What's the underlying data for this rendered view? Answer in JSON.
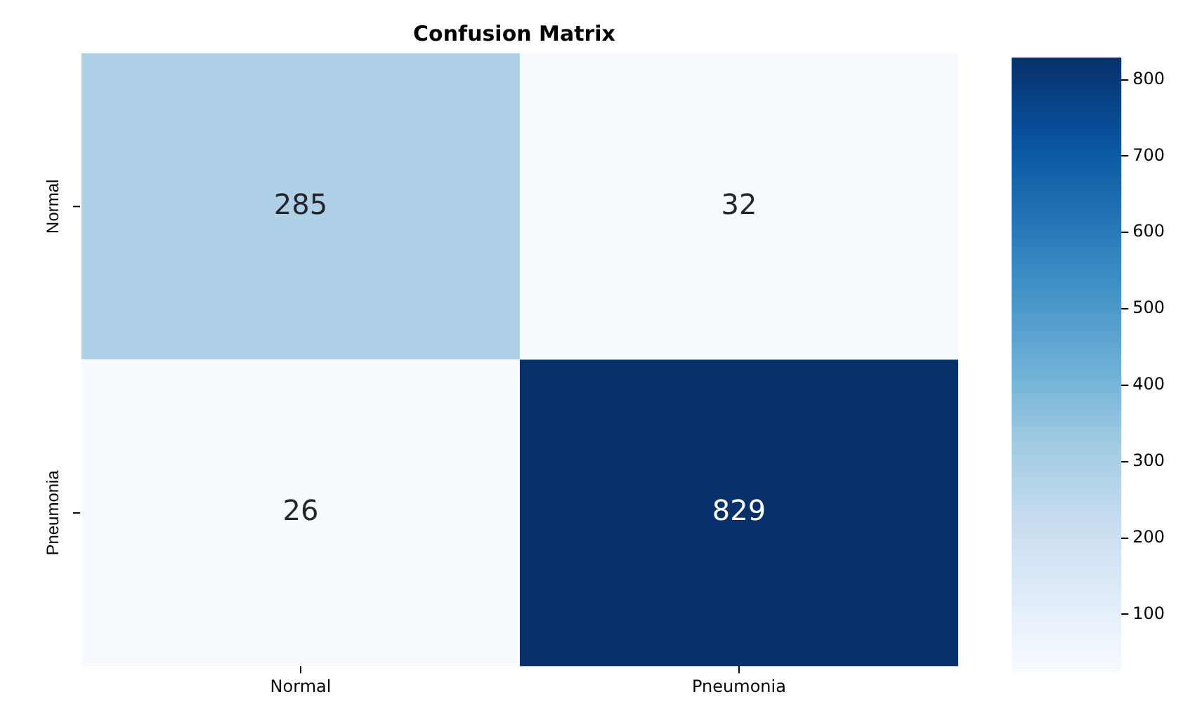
{
  "chart_data": {
    "type": "heatmap",
    "title": "Confusion Matrix",
    "categories": [
      "Normal",
      "Pneumonia"
    ],
    "y_categories": [
      "Normal",
      "Pneumonia"
    ],
    "cells": [
      [
        285,
        32
      ],
      [
        26,
        829
      ]
    ],
    "data_labels": true,
    "clim": [
      26,
      829
    ],
    "cticks": [
      100,
      200,
      300,
      400,
      500,
      600,
      700,
      800
    ]
  }
}
